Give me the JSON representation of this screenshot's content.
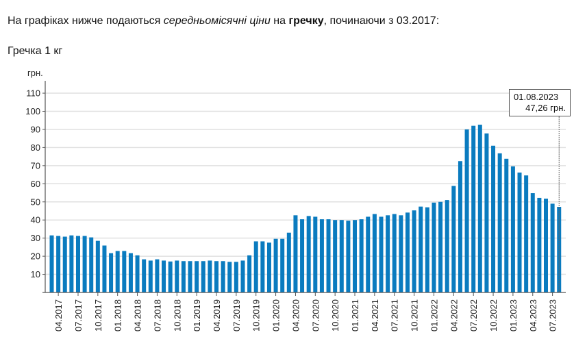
{
  "intro": {
    "part1": "На графіках нижче подаються ",
    "italic": "середньомісячні ціни",
    "part2": " на ",
    "bold": "гречку",
    "part3": ", починаючи з 03.2017:"
  },
  "subtitle": "Гречка 1 кг",
  "tooltip": {
    "date": "01.08.2023",
    "value": "47,26 грн."
  },
  "colors": {
    "bar": "#0a7bbf",
    "grid": "#e0e0e0",
    "axis": "#555555"
  },
  "chart_data": {
    "type": "bar",
    "title": "Гречка 1 кг",
    "xlabel": "",
    "ylabel": "грн.",
    "ylim": [
      0,
      110
    ],
    "yticks": [
      10,
      20,
      30,
      40,
      50,
      60,
      70,
      80,
      90,
      100,
      110
    ],
    "grid": true,
    "legend": null,
    "xtick_labels": [
      "04.2017",
      "07.2017",
      "10.2017",
      "01.2018",
      "04.2018",
      "07.2018",
      "10.2018",
      "01.2019",
      "04.2019",
      "07.2019",
      "10.2019",
      "01.2020",
      "04.2020",
      "07.2020",
      "10.2020",
      "01.2021",
      "04.2021",
      "07.2021",
      "10.2021",
      "01.2022",
      "04.2022",
      "07.2022",
      "10.2022",
      "01.2023",
      "04.2023",
      "07.2023"
    ],
    "categories": [
      "03.2017",
      "04.2017",
      "05.2017",
      "06.2017",
      "07.2017",
      "08.2017",
      "09.2017",
      "10.2017",
      "11.2017",
      "12.2017",
      "01.2018",
      "02.2018",
      "03.2018",
      "04.2018",
      "05.2018",
      "06.2018",
      "07.2018",
      "08.2018",
      "09.2018",
      "10.2018",
      "11.2018",
      "12.2018",
      "01.2019",
      "02.2019",
      "03.2019",
      "04.2019",
      "05.2019",
      "06.2019",
      "07.2019",
      "08.2019",
      "09.2019",
      "10.2019",
      "11.2019",
      "12.2019",
      "01.2020",
      "02.2020",
      "03.2020",
      "04.2020",
      "05.2020",
      "06.2020",
      "07.2020",
      "08.2020",
      "09.2020",
      "10.2020",
      "11.2020",
      "12.2020",
      "01.2021",
      "02.2021",
      "03.2021",
      "04.2021",
      "05.2021",
      "06.2021",
      "07.2021",
      "08.2021",
      "09.2021",
      "10.2021",
      "11.2021",
      "12.2021",
      "01.2022",
      "02.2022",
      "03.2022",
      "04.2022",
      "05.2022",
      "06.2022",
      "07.2022",
      "08.2022",
      "09.2022",
      "10.2022",
      "11.2022",
      "12.2022",
      "01.2023",
      "02.2023",
      "03.2023",
      "04.2023",
      "05.2023",
      "06.2023",
      "07.2023",
      "08.2023"
    ],
    "values": [
      31.5,
      31.2,
      30.8,
      31.5,
      31.2,
      31.2,
      30.4,
      28.5,
      25.9,
      21.7,
      22.9,
      22.9,
      21.7,
      20.5,
      18.3,
      17.6,
      18.3,
      17.6,
      17.1,
      17.6,
      17.3,
      17.3,
      17.3,
      17.3,
      17.6,
      17.3,
      17.3,
      16.9,
      16.9,
      17.6,
      20.5,
      28.2,
      28.2,
      27.5,
      29.6,
      29.6,
      33.0,
      42.6,
      40.4,
      42.2,
      41.8,
      40.4,
      40.4,
      40.0,
      40.0,
      39.6,
      40.0,
      40.4,
      41.8,
      43.3,
      41.8,
      42.6,
      43.3,
      42.6,
      44.1,
      45.3,
      47.4,
      47.0,
      49.6,
      50.0,
      51.0,
      58.8,
      72.5,
      90.0,
      92.0,
      92.6,
      87.8,
      81.0,
      76.8,
      73.8,
      69.6,
      66.2,
      64.6,
      54.8,
      52.2,
      51.8,
      49.0,
      47.26
    ],
    "annotation": {
      "date": "01.08.2023",
      "value": 47.26,
      "label": "47,26 грн."
    }
  }
}
